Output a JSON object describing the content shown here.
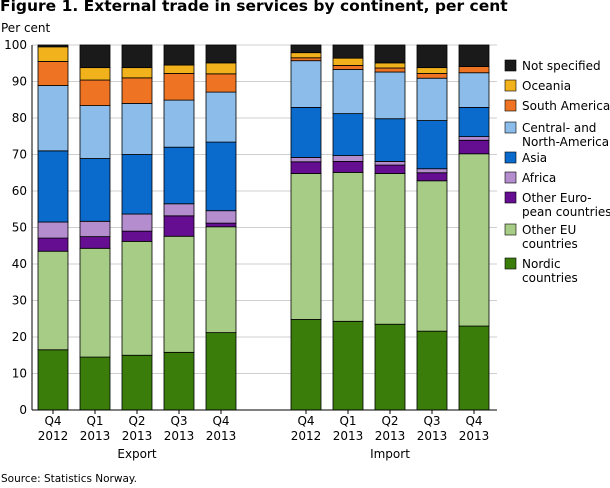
{
  "chart_data": {
    "type": "bar",
    "stacked": true,
    "title": "Figure 1. External trade in services by continent, per cent",
    "ylabel": "Per cent",
    "ylim": [
      0,
      100
    ],
    "yticks": [
      0,
      10,
      20,
      30,
      40,
      50,
      60,
      70,
      80,
      90,
      100
    ],
    "groups": [
      "Export",
      "Import"
    ],
    "categories": [
      {
        "group": "Export",
        "line1": "Q4",
        "line2": "2012"
      },
      {
        "group": "Export",
        "line1": "Q1",
        "line2": "2013"
      },
      {
        "group": "Export",
        "line1": "Q2",
        "line2": "2013"
      },
      {
        "group": "Export",
        "line1": "Q3",
        "line2": "2013"
      },
      {
        "group": "Export",
        "line1": "Q4",
        "line2": "2013"
      },
      {
        "group": "Import",
        "line1": "Q4",
        "line2": "2012"
      },
      {
        "group": "Import",
        "line1": "Q1",
        "line2": "2013"
      },
      {
        "group": "Import",
        "line1": "Q2",
        "line2": "2013"
      },
      {
        "group": "Import",
        "line1": "Q3",
        "line2": "2013"
      },
      {
        "group": "Import",
        "line1": "Q4",
        "line2": "2013"
      }
    ],
    "series": [
      {
        "name": "Nordic countries",
        "legend_lines": [
          "Nordic",
          "countries"
        ],
        "color": "#3a7d0a",
        "values": [
          16.5,
          14.5,
          15.0,
          15.8,
          21.2,
          24.8,
          24.3,
          23.5,
          21.6,
          23.0
        ]
      },
      {
        "name": "Other EU countries",
        "legend_lines": [
          "Other EU",
          "countries"
        ],
        "color": "#a6cc85",
        "values": [
          27.0,
          29.8,
          31.2,
          31.8,
          29.0,
          40.0,
          40.8,
          41.3,
          41.2,
          47.2
        ]
      },
      {
        "name": "Other Euro-pean countries",
        "legend_lines": [
          "Other Euro-",
          "pean countries"
        ],
        "color": "#650e91",
        "values": [
          3.6,
          3.2,
          2.8,
          5.6,
          1.0,
          3.2,
          3.0,
          2.3,
          2.2,
          3.7
        ]
      },
      {
        "name": "Africa",
        "legend_lines": [
          "Africa"
        ],
        "color": "#b48dcf",
        "values": [
          4.4,
          4.2,
          4.7,
          3.3,
          3.4,
          1.2,
          1.6,
          1.0,
          1.1,
          1.0
        ]
      },
      {
        "name": "Asia",
        "legend_lines": [
          "Asia"
        ],
        "color": "#0a6bcc",
        "values": [
          19.5,
          17.2,
          16.3,
          15.5,
          18.8,
          13.7,
          11.5,
          11.7,
          13.2,
          8.0
        ]
      },
      {
        "name": "Central- and North-America",
        "legend_lines": [
          "Central- and",
          "North-America"
        ],
        "color": "#8cbdea",
        "values": [
          17.9,
          14.5,
          14.0,
          12.9,
          13.7,
          12.8,
          12.1,
          12.8,
          11.6,
          9.5
        ]
      },
      {
        "name": "South America",
        "legend_lines": [
          "South America"
        ],
        "color": "#ee7423",
        "values": [
          6.6,
          7.0,
          7.0,
          7.3,
          5.0,
          0.8,
          1.1,
          1.1,
          1.3,
          1.7
        ]
      },
      {
        "name": "Oceania",
        "legend_lines": [
          "Oceania"
        ],
        "color": "#f1b21b",
        "values": [
          4.0,
          3.4,
          2.8,
          2.3,
          3.0,
          1.4,
          2.0,
          1.4,
          1.6,
          0.0
        ]
      },
      {
        "name": "Not specified",
        "legend_lines": [
          "Not specified"
        ],
        "color": "#1a1a1a",
        "values": [
          0.5,
          6.2,
          6.2,
          5.5,
          4.9,
          2.1,
          3.6,
          4.9,
          6.2,
          5.9
        ]
      }
    ]
  },
  "source": "Source: Statistics Norway."
}
